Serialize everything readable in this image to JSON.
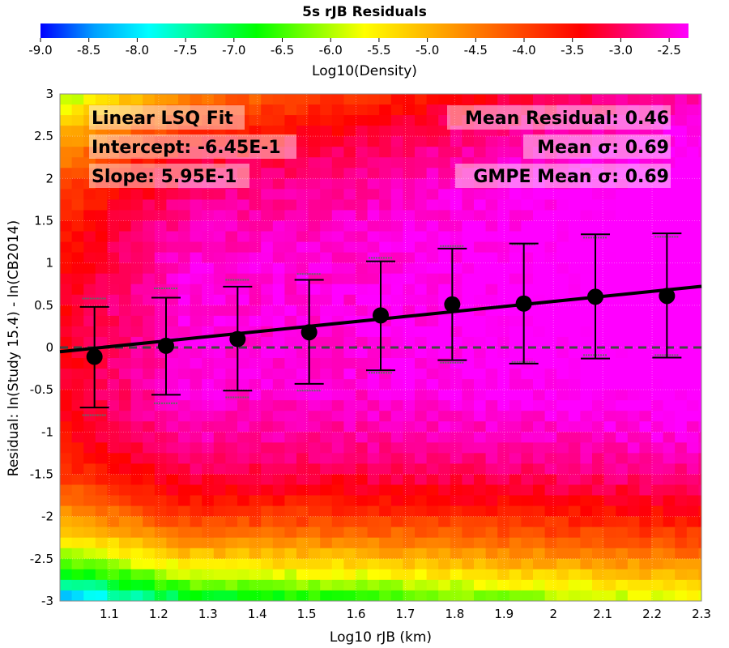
{
  "chart_data": {
    "type": "heatmap",
    "title": "5s rJB Residuals",
    "colorbar": {
      "label": "Log10(Density)",
      "range": [
        -9.0,
        -2.3
      ],
      "ticks": [
        "-9.0",
        "-8.5",
        "-8.0",
        "-7.5",
        "-7.0",
        "-6.5",
        "-6.0",
        "-5.5",
        "-5.0",
        "-4.5",
        "-4.0",
        "-3.5",
        "-3.0",
        "-2.5"
      ],
      "colors": [
        "#0000ff",
        "#00a0ff",
        "#00ffff",
        "#00ff80",
        "#00ff00",
        "#80ff00",
        "#ffff00",
        "#ffc000",
        "#ff8000",
        "#ff4000",
        "#ff0000",
        "#ff0080",
        "#ff00ff"
      ]
    },
    "xlabel": "Log10 rJB (km)",
    "ylabel": "Residual: ln(Study 15.4) - ln(CB2014)",
    "xlim": [
      1.0,
      2.3
    ],
    "ylim": [
      -3,
      3
    ],
    "x_ticks": [
      "1.1",
      "1.2",
      "1.3",
      "1.4",
      "1.5",
      "1.6",
      "1.7",
      "1.8",
      "1.9",
      "2",
      "2.1",
      "2.2",
      "2.3"
    ],
    "y_ticks": [
      "3",
      "2.5",
      "2",
      "1.5",
      "1",
      "0.5",
      "0",
      "-0.5",
      "-1",
      "-1.5",
      "-2",
      "-2.5",
      "-3"
    ],
    "zero_line": 0,
    "bin_means": [
      {
        "x": 1.07,
        "mean": -0.11,
        "lo": -0.71,
        "hi": 0.48,
        "gmpe_lo": -0.8,
        "gmpe_hi": 0.58
      },
      {
        "x": 1.215,
        "mean": 0.02,
        "lo": -0.56,
        "hi": 0.59,
        "gmpe_lo": -0.66,
        "gmpe_hi": 0.7
      },
      {
        "x": 1.36,
        "mean": 0.1,
        "lo": -0.51,
        "hi": 0.72,
        "gmpe_lo": -0.59,
        "gmpe_hi": 0.8
      },
      {
        "x": 1.505,
        "mean": 0.18,
        "lo": -0.43,
        "hi": 0.8,
        "gmpe_lo": -0.51,
        "gmpe_hi": 0.87
      },
      {
        "x": 1.65,
        "mean": 0.38,
        "lo": -0.27,
        "hi": 1.02,
        "gmpe_lo": -0.3,
        "gmpe_hi": 1.06
      },
      {
        "x": 1.795,
        "mean": 0.51,
        "lo": -0.15,
        "hi": 1.17,
        "gmpe_lo": -0.18,
        "gmpe_hi": 1.2
      },
      {
        "x": 1.94,
        "mean": 0.52,
        "lo": -0.19,
        "hi": 1.23,
        "gmpe_lo": -0.17,
        "gmpe_hi": 1.22
      },
      {
        "x": 2.085,
        "mean": 0.6,
        "lo": -0.13,
        "hi": 1.34,
        "gmpe_lo": -0.09,
        "gmpe_hi": 1.3
      },
      {
        "x": 2.23,
        "mean": 0.61,
        "lo": -0.12,
        "hi": 1.35,
        "gmpe_lo": -0.09,
        "gmpe_hi": 1.31
      }
    ],
    "fit": {
      "intercept": -0.645,
      "slope": 0.595,
      "labels": {
        "title": "Linear LSQ Fit",
        "intercept": "Intercept: -6.45E-1",
        "slope": "Slope: 5.95E-1"
      }
    },
    "stats": {
      "mean_residual": "Mean Residual: 0.46",
      "mean_sigma": "Mean σ: 0.69",
      "gmpe_mean_sigma": "GMPE Mean σ: 0.69"
    }
  }
}
